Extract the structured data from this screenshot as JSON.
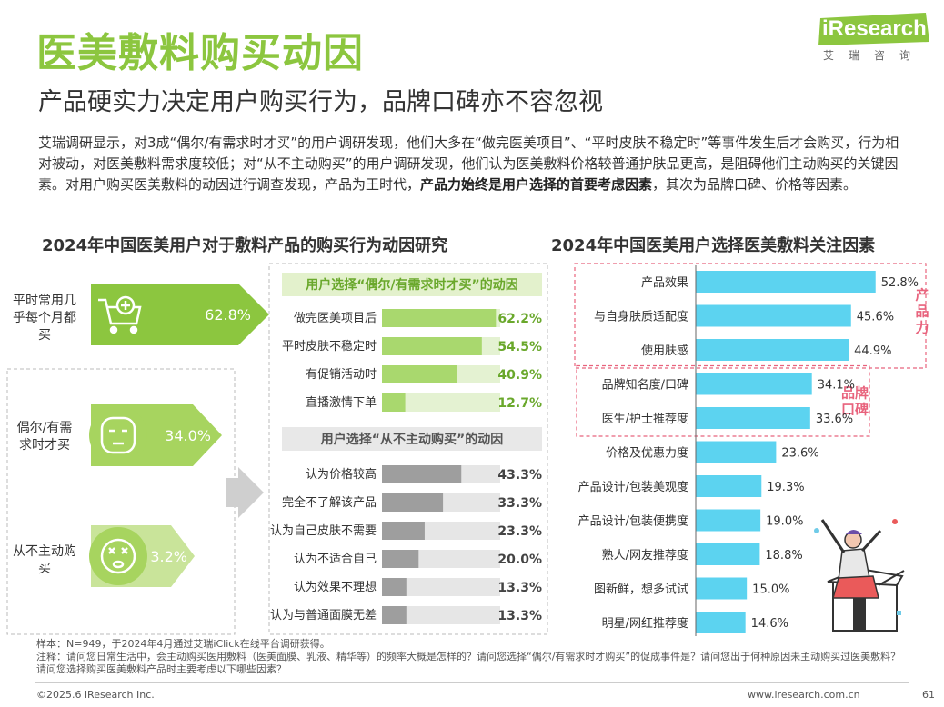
{
  "header": {
    "title": "医美敷料购买动因",
    "subtitle": "产品硬实力决定用户购买行为，品牌口碑亦不容忽视",
    "intro_1": "艾瑞调研显示，对3成“偶尔/有需求时才买”的用户调研发现，他们大多在“做完医美项目”、“平时皮肤不稳定时”等事件发生后才会购买，行为相对被动，对医美敷料需求度较低；对“从不主动购买”的用户调研发现，他们认为医美敷料价格较普通护肤品更高，是阻碍他们主动购买的关键因素。对用户购买医美敷料的动因进行调查发现，产品为王时代，",
    "intro_bold": "产品力始终是用户选择的首要考虑因素",
    "intro_2": "，其次为品牌口碑、价格等因素。"
  },
  "logo": {
    "brand": "iResearch",
    "sub": "艾瑞咨询"
  },
  "left_section": {
    "title": "2024年中国医美用户对于敷料产品的购买行为动因研究",
    "segments": [
      {
        "label": "平时常用几乎每个月都买",
        "value": "62.8%",
        "icon": "shopping-cart-icon"
      },
      {
        "label": "偶尔/有需求时才买",
        "value": "34.0%",
        "icon": "face-mask-icon"
      },
      {
        "label": "从不主动购买",
        "value": "3.2%",
        "icon": "dizzy-face-icon"
      }
    ],
    "occasional": {
      "title": "用户选择“偶尔/有需求时才买”的动因",
      "items": [
        {
          "label": "做完医美项目后",
          "value": 62.2,
          "display": "62.2%"
        },
        {
          "label": "平时皮肤不稳定时",
          "value": 54.5,
          "display": "54.5%"
        },
        {
          "label": "有促销活动时",
          "value": 40.9,
          "display": "40.9%"
        },
        {
          "label": "直播激情下单",
          "value": 12.7,
          "display": "12.7%"
        }
      ]
    },
    "never": {
      "title": "用户选择“从不主动购买”的动因",
      "items": [
        {
          "label": "认为价格较高",
          "value": 43.3,
          "display": "43.3%"
        },
        {
          "label": "完全不了解该产品",
          "value": 33.3,
          "display": "33.3%"
        },
        {
          "label": "认为自己皮肤不需要",
          "value": 23.3,
          "display": "23.3%"
        },
        {
          "label": "认为不适合自己",
          "value": 20.0,
          "display": "20.0%"
        },
        {
          "label": "认为效果不理想",
          "value": 13.3,
          "display": "13.3%"
        },
        {
          "label": "认为与普通面膜无差",
          "value": 13.3,
          "display": "13.3%"
        }
      ]
    }
  },
  "chart_data": {
    "type": "bar",
    "orientation": "horizontal",
    "title": "2024年中国医美用户选择医美敷料关注因素",
    "categories": [
      "产品效果",
      "与自身肤质适配度",
      "使用肤感",
      "品牌知名度/口碑",
      "医生/护士推荐度",
      "价格及优惠力度",
      "产品设计/包装美观度",
      "产品设计/包装便携度",
      "熟人/网友推荐度",
      "图新鲜，想多试试",
      "明星/网红推荐度"
    ],
    "values": [
      52.8,
      45.6,
      44.9,
      34.1,
      33.6,
      23.6,
      19.3,
      19.0,
      18.8,
      15.0,
      14.6
    ],
    "display": [
      "52.8%",
      "45.6%",
      "44.9%",
      "34.1%",
      "33.6%",
      "23.6%",
      "19.3%",
      "19.0%",
      "18.8%",
      "15.0%",
      "14.6%"
    ],
    "xlim": [
      0,
      60
    ],
    "groups": [
      {
        "label": "产品力",
        "start": 0,
        "end": 2
      },
      {
        "label": "品牌口碑",
        "start": 3,
        "end": 4
      }
    ],
    "bar_color": "#5cd3f0",
    "grid": false,
    "legend": "none"
  },
  "colors": {
    "brand_green": "#8cc63f",
    "bar_blue": "#5cd3f0",
    "accent_pink": "#e8637d",
    "gray_bar": "#9e9e9e"
  },
  "footer": {
    "sample": "样本：N=949，于2024年4月通过艾瑞iClick在线平台调研获得。",
    "note": "注释：请问您日常生活中，会主动购买医用敷料（医美面膜、乳液、精华等）的频率大概是怎样的？请问您选择“偶尔/有需求时才购买”的促成事件是？请问您出于何种原因未主动购买过医美敷料？请问您选择购买医美敷料产品时主要考虑以下哪些因素？",
    "copyright": "©2025.6 iResearch Inc.",
    "url": "www.iresearch.com.cn",
    "page": "61"
  }
}
